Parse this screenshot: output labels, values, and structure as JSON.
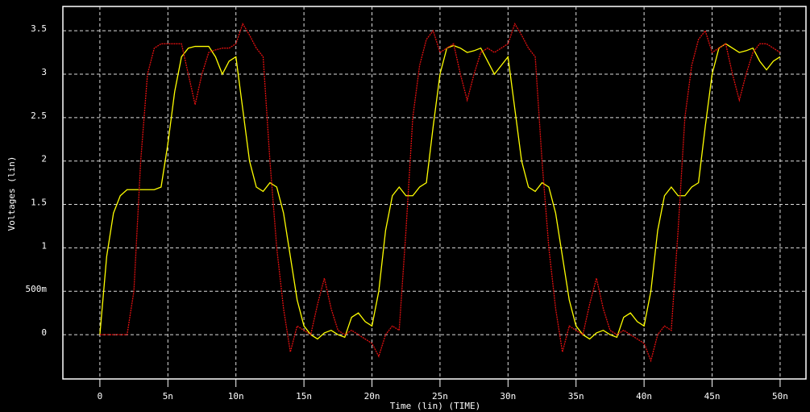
{
  "chart_data": {
    "type": "line",
    "ylabel": "Voltages (lin)",
    "xlabel": "Time (lin) (TIME)",
    "x": [
      0,
      0.5,
      1,
      1.5,
      2,
      2.5,
      3,
      3.5,
      4,
      4.5,
      5,
      5.5,
      6,
      6.5,
      7,
      7.5,
      8,
      8.5,
      9,
      9.5,
      10,
      10.5,
      11,
      11.5,
      12,
      12.5,
      13,
      13.5,
      14,
      14.5,
      15,
      15.5,
      16,
      16.5,
      17,
      17.5,
      18,
      18.5,
      19,
      19.5,
      20,
      20.5,
      21,
      21.5,
      22,
      22.5,
      23,
      23.5,
      24,
      24.5,
      25,
      25.5,
      26,
      26.5,
      27,
      27.5,
      28,
      28.5,
      29,
      29.5,
      30,
      30.5,
      31,
      31.5,
      32,
      32.5,
      33,
      33.5,
      34,
      34.5,
      35,
      35.5,
      36,
      36.5,
      37,
      37.5,
      38,
      38.5,
      39,
      39.5,
      40,
      40.5,
      41,
      41.5,
      42,
      42.5,
      43,
      43.5,
      44,
      44.5,
      45,
      45.5,
      46,
      46.5,
      47,
      47.5,
      48,
      48.5,
      49,
      49.5,
      50
    ],
    "series": [
      {
        "color": "#ffff00",
        "values": [
          0,
          0.9,
          1.4,
          1.6,
          1.67,
          1.67,
          1.67,
          1.67,
          1.67,
          1.7,
          2.2,
          2.8,
          3.2,
          3.3,
          3.32,
          3.32,
          3.32,
          3.2,
          3.0,
          3.15,
          3.2,
          2.6,
          2.0,
          1.7,
          1.65,
          1.75,
          1.7,
          1.4,
          0.9,
          0.4,
          0.1,
          0,
          -0.05,
          0.02,
          0.05,
          0,
          -0.03,
          0.2,
          0.25,
          0.15,
          0.1,
          0.5,
          1.2,
          1.6,
          1.7,
          1.6,
          1.6,
          1.7,
          1.75,
          2.4,
          3.0,
          3.3,
          3.33,
          3.3,
          3.25,
          3.27,
          3.3,
          3.15,
          3.0,
          3.1,
          3.2,
          2.6,
          2.0,
          1.7,
          1.65,
          1.75,
          1.7,
          1.4,
          0.9,
          0.4,
          0.1,
          0,
          -0.05,
          0.02,
          0.05,
          0,
          -0.03,
          0.2,
          0.25,
          0.15,
          0.1,
          0.5,
          1.2,
          1.6,
          1.7,
          1.6,
          1.6,
          1.7,
          1.75,
          2.4,
          3.0,
          3.3,
          3.35,
          3.3,
          3.25,
          3.27,
          3.3,
          3.15,
          3.05,
          3.15,
          3.2
        ]
      },
      {
        "color": "#e01010",
        "values": [
          0,
          0,
          0,
          0,
          0,
          0.5,
          2.0,
          3.0,
          3.3,
          3.35,
          3.35,
          3.35,
          3.35,
          3.0,
          2.65,
          3.0,
          3.25,
          3.28,
          3.3,
          3.3,
          3.35,
          3.58,
          3.45,
          3.3,
          3.2,
          2.0,
          1.0,
          0.3,
          -0.2,
          0.1,
          0.05,
          0,
          0.35,
          0.65,
          0.3,
          0.05,
          0,
          0.05,
          0,
          -0.05,
          -0.1,
          -0.25,
          0,
          0.1,
          0.05,
          1.2,
          2.5,
          3.1,
          3.4,
          3.5,
          3.25,
          3.3,
          3.35,
          3.0,
          2.7,
          3.0,
          3.25,
          3.3,
          3.25,
          3.3,
          3.35,
          3.58,
          3.45,
          3.3,
          3.2,
          2.0,
          1.0,
          0.3,
          -0.2,
          0.1,
          0.05,
          0,
          0.35,
          0.65,
          0.3,
          0.05,
          0,
          0.05,
          0,
          -0.05,
          -0.1,
          -0.3,
          0,
          0.1,
          0.05,
          1.2,
          2.5,
          3.1,
          3.4,
          3.5,
          3.25,
          3.3,
          3.35,
          3.0,
          2.7,
          3.0,
          3.25,
          3.35,
          3.35,
          3.3,
          3.25
        ]
      }
    ],
    "xlim": [
      -2.72,
      51.9
    ],
    "ylim": [
      -0.51,
      3.78
    ],
    "xticks": [
      0,
      {
        "value": 5,
        "label": "5n"
      },
      {
        "value": 10,
        "label": "10n"
      },
      {
        "value": 15,
        "label": "15n"
      },
      {
        "value": 20,
        "label": "20n"
      },
      {
        "value": 25,
        "label": "25n"
      },
      {
        "value": 30,
        "label": "30n"
      },
      {
        "value": 35,
        "label": "35n"
      },
      {
        "value": 40,
        "label": "40n"
      },
      {
        "value": 45,
        "label": "45n"
      },
      {
        "value": 50,
        "label": "50n"
      }
    ],
    "yticks": [
      0,
      {
        "value": 0.5,
        "label": "500m"
      },
      1,
      1.5,
      2,
      2.5,
      3,
      3.5
    ],
    "grid": true
  }
}
